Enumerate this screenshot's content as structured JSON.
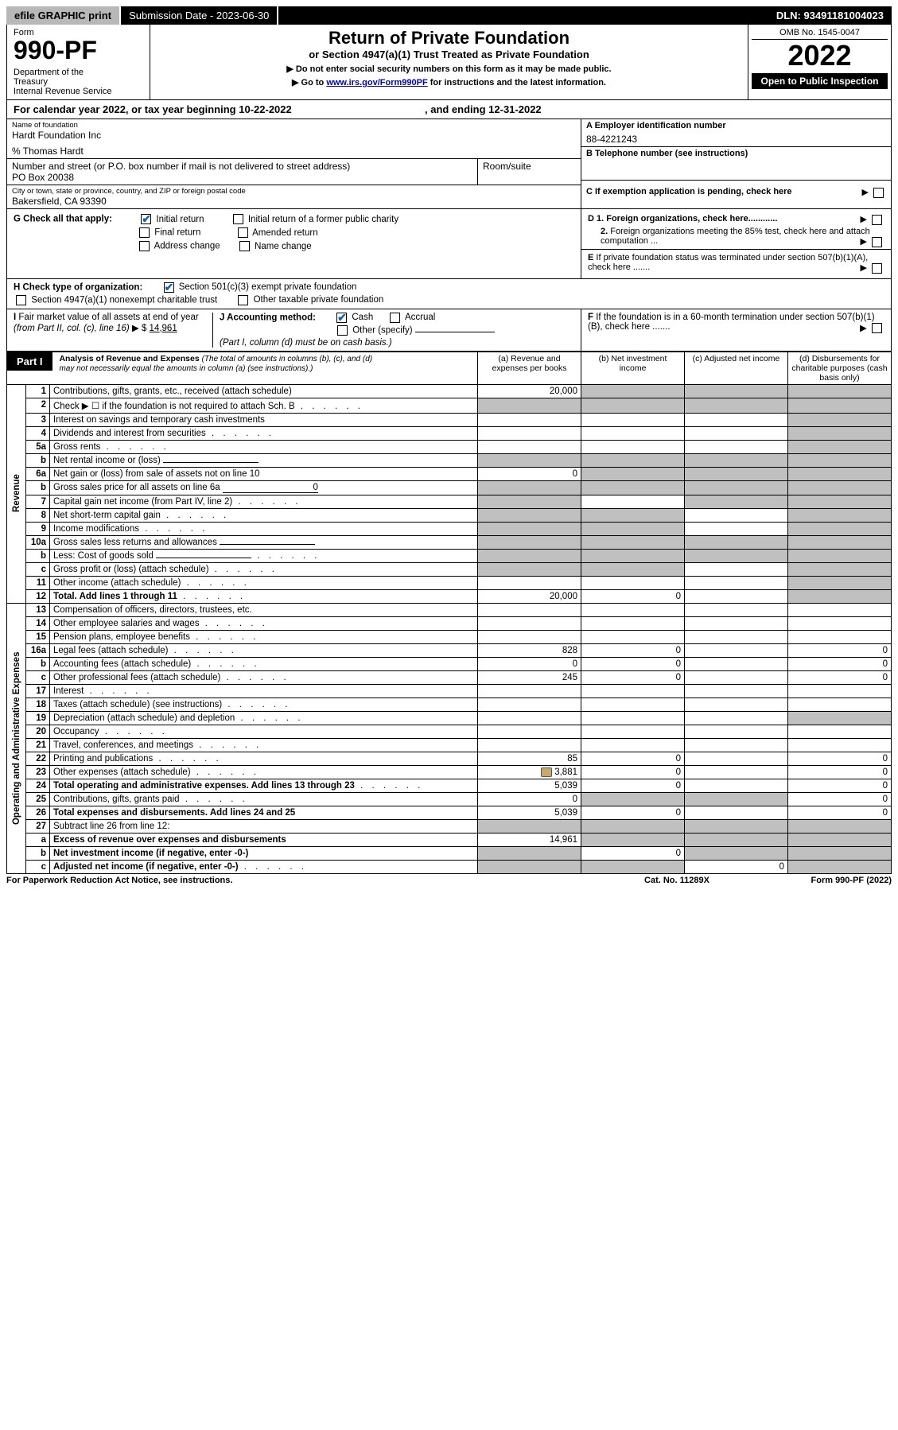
{
  "top_bar": {
    "efile": "efile GRAPHIC print",
    "sub_label": "Submission Date - 2023-06-30",
    "dln": "DLN: 93491181004023"
  },
  "header": {
    "form_label": "Form",
    "form_no": "990-PF",
    "dept": "Department of the Treasury\nInternal Revenue Service",
    "title": "Return of Private Foundation",
    "subtitle": "or Section 4947(a)(1) Trust Treated as Private Foundation",
    "notice1": "▶ Do not enter social security numbers on this form as it may be made public.",
    "notice2_prefix": "▶ Go to ",
    "notice2_link": "www.irs.gov/Form990PF",
    "notice2_suffix": " for instructions and the latest information.",
    "omb": "OMB No. 1545-0047",
    "year": "2022",
    "open": "Open to Public Inspection"
  },
  "cal_year": {
    "prefix": "For calendar year 2022, or tax year beginning ",
    "begin": "10-22-2022",
    "middle": " , and ending ",
    "end": "12-31-2022"
  },
  "info": {
    "name_label": "Name of foundation",
    "name": "Hardt Foundation Inc",
    "care_of": "% Thomas Hardt",
    "addr_label": "Number and street (or P.O. box number if mail is not delivered to street address)",
    "addr": "PO Box 20038",
    "room_label": "Room/suite",
    "city_label": "City or town, state or province, country, and ZIP or foreign postal code",
    "city": "Bakersfield, CA  93390",
    "a_label": "A Employer identification number",
    "a_val": "88-4221243",
    "b_label": "B Telephone number (see instructions)",
    "c_label": "C If exemption application is pending, check here",
    "d1_label": "D 1. Foreign organizations, check here............",
    "d2_label": "2. Foreign organizations meeting the 85% test, check here and attach computation ...",
    "e_label": "E  If private foundation status was terminated under section 507(b)(1)(A), check here .......",
    "f_label": "F  If the foundation is in a 60-month termination under section 507(b)(1)(B), check here ......."
  },
  "g": {
    "label": "G Check all that apply:",
    "initial": "Initial return",
    "initial_former": "Initial return of a former public charity",
    "final": "Final return",
    "amended": "Amended return",
    "addr_change": "Address change",
    "name_change": "Name change"
  },
  "h": {
    "label": "H Check type of organization:",
    "s501": "Section 501(c)(3) exempt private foundation",
    "s4947": "Section 4947(a)(1) nonexempt charitable trust",
    "other": "Other taxable private foundation"
  },
  "i": {
    "label": "I Fair market value of all assets at end of year (from Part II, col. (c), line 16)",
    "arrow": "▶ $",
    "val": "14,961"
  },
  "j": {
    "label": "J Accounting method:",
    "cash": "Cash",
    "accrual": "Accrual",
    "other": "Other (specify)",
    "note": "(Part I, column (d) must be on cash basis.)"
  },
  "part1": {
    "header": "Part I",
    "title": "Analysis of Revenue and Expenses",
    "title_note": "(The total of amounts in columns (b), (c), and (d) may not necessarily equal the amounts in column (a) (see instructions).)",
    "col_a": "(a)  Revenue and expenses per books",
    "col_b": "(b)  Net investment income",
    "col_c": "(c)  Adjusted net income",
    "col_d": "(d)  Disbursements for charitable purposes (cash basis only)",
    "revenue_label": "Revenue",
    "opexp_label": "Operating and Administrative Expenses",
    "rows": [
      {
        "n": "1",
        "d": "Contributions, gifts, grants, etc., received (attach schedule)",
        "a": "20,000",
        "b": "grey",
        "c": "grey",
        "dd": "grey"
      },
      {
        "n": "2",
        "d": "Check ▶ ☐ if the foundation is not required to attach Sch. B",
        "a": "grey",
        "b": "grey",
        "c": "grey",
        "dd": "grey",
        "dots": true
      },
      {
        "n": "3",
        "d": "Interest on savings and temporary cash investments",
        "a": "",
        "b": "",
        "c": "",
        "dd": "grey"
      },
      {
        "n": "4",
        "d": "Dividends and interest from securities",
        "a": "",
        "b": "",
        "c": "",
        "dd": "grey",
        "dots": true
      },
      {
        "n": "5a",
        "d": "Gross rents",
        "a": "",
        "b": "",
        "c": "",
        "dd": "grey",
        "dots": true
      },
      {
        "n": "b",
        "d": "Net rental income or (loss)",
        "a": "grey",
        "b": "grey",
        "c": "grey",
        "dd": "grey",
        "underline": true
      },
      {
        "n": "6a",
        "d": "Net gain or (loss) from sale of assets not on line 10",
        "a": "0",
        "b": "grey",
        "c": "grey",
        "dd": "grey"
      },
      {
        "n": "b",
        "d": "Gross sales price for all assets on line 6a",
        "a": "grey",
        "b": "grey",
        "c": "grey",
        "dd": "grey",
        "underline": true,
        "uval": "0"
      },
      {
        "n": "7",
        "d": "Capital gain net income (from Part IV, line 2)",
        "a": "grey",
        "b": "",
        "c": "grey",
        "dd": "grey",
        "dots": true
      },
      {
        "n": "8",
        "d": "Net short-term capital gain",
        "a": "grey",
        "b": "grey",
        "c": "",
        "dd": "grey",
        "dots": true
      },
      {
        "n": "9",
        "d": "Income modifications",
        "a": "grey",
        "b": "grey",
        "c": "",
        "dd": "grey",
        "dots": true
      },
      {
        "n": "10a",
        "d": "Gross sales less returns and allowances",
        "a": "grey",
        "b": "grey",
        "c": "grey",
        "dd": "grey",
        "underline": true
      },
      {
        "n": "b",
        "d": "Less: Cost of goods sold",
        "a": "grey",
        "b": "grey",
        "c": "grey",
        "dd": "grey",
        "underline": true,
        "dots": true
      },
      {
        "n": "c",
        "d": "Gross profit or (loss) (attach schedule)",
        "a": "grey",
        "b": "grey",
        "c": "",
        "dd": "grey",
        "dots": true
      },
      {
        "n": "11",
        "d": "Other income (attach schedule)",
        "a": "",
        "b": "",
        "c": "",
        "dd": "grey",
        "dots": true
      },
      {
        "n": "12",
        "d": "Total. Add lines 1 through 11",
        "bold": true,
        "a": "20,000",
        "b": "0",
        "c": "",
        "dd": "grey",
        "dots": true
      },
      {
        "n": "13",
        "d": "Compensation of officers, directors, trustees, etc.",
        "a": "",
        "b": "",
        "c": "",
        "dd": ""
      },
      {
        "n": "14",
        "d": "Other employee salaries and wages",
        "a": "",
        "b": "",
        "c": "",
        "dd": "",
        "dots": true
      },
      {
        "n": "15",
        "d": "Pension plans, employee benefits",
        "a": "",
        "b": "",
        "c": "",
        "dd": "",
        "dots": true
      },
      {
        "n": "16a",
        "d": "Legal fees (attach schedule)",
        "a": "828",
        "b": "0",
        "c": "",
        "dd": "0",
        "dots": true
      },
      {
        "n": "b",
        "d": "Accounting fees (attach schedule)",
        "a": "0",
        "b": "0",
        "c": "",
        "dd": "0",
        "dots": true
      },
      {
        "n": "c",
        "d": "Other professional fees (attach schedule)",
        "a": "245",
        "b": "0",
        "c": "",
        "dd": "0",
        "dots": true
      },
      {
        "n": "17",
        "d": "Interest",
        "a": "",
        "b": "",
        "c": "",
        "dd": "",
        "dots": true
      },
      {
        "n": "18",
        "d": "Taxes (attach schedule) (see instructions)",
        "a": "",
        "b": "",
        "c": "",
        "dd": "",
        "dots": true
      },
      {
        "n": "19",
        "d": "Depreciation (attach schedule) and depletion",
        "a": "",
        "b": "",
        "c": "",
        "dd": "grey",
        "dots": true
      },
      {
        "n": "20",
        "d": "Occupancy",
        "a": "",
        "b": "",
        "c": "",
        "dd": "",
        "dots": true
      },
      {
        "n": "21",
        "d": "Travel, conferences, and meetings",
        "a": "",
        "b": "",
        "c": "",
        "dd": "",
        "dots": true
      },
      {
        "n": "22",
        "d": "Printing and publications",
        "a": "85",
        "b": "0",
        "c": "",
        "dd": "0",
        "dots": true
      },
      {
        "n": "23",
        "d": "Other expenses (attach schedule)",
        "a": "3,881",
        "b": "0",
        "c": "",
        "dd": "0",
        "dots": true,
        "icon": true
      },
      {
        "n": "24",
        "d": "Total operating and administrative expenses. Add lines 13 through 23",
        "bold": true,
        "a": "5,039",
        "b": "0",
        "c": "",
        "dd": "0",
        "dots": true
      },
      {
        "n": "25",
        "d": "Contributions, gifts, grants paid",
        "a": "0",
        "b": "grey",
        "c": "grey",
        "dd": "0",
        "dots": true
      },
      {
        "n": "26",
        "d": "Total expenses and disbursements. Add lines 24 and 25",
        "bold": true,
        "a": "5,039",
        "b": "0",
        "c": "",
        "dd": "0"
      },
      {
        "n": "27",
        "d": "Subtract line 26 from line 12:",
        "a": "grey",
        "b": "grey",
        "c": "grey",
        "dd": "grey"
      },
      {
        "n": "a",
        "d": "Excess of revenue over expenses and disbursements",
        "bold": true,
        "a": "14,961",
        "b": "grey",
        "c": "grey",
        "dd": "grey"
      },
      {
        "n": "b",
        "d": "Net investment income (if negative, enter -0-)",
        "bold": true,
        "a": "grey",
        "b": "0",
        "c": "grey",
        "dd": "grey"
      },
      {
        "n": "c",
        "d": "Adjusted net income (if negative, enter -0-)",
        "bold": true,
        "a": "grey",
        "b": "grey",
        "c": "0",
        "dd": "grey",
        "dots": true
      }
    ]
  },
  "footer": {
    "left": "For Paperwork Reduction Act Notice, see instructions.",
    "center": "Cat. No. 11289X",
    "right": "Form 990-PF (2022)"
  }
}
